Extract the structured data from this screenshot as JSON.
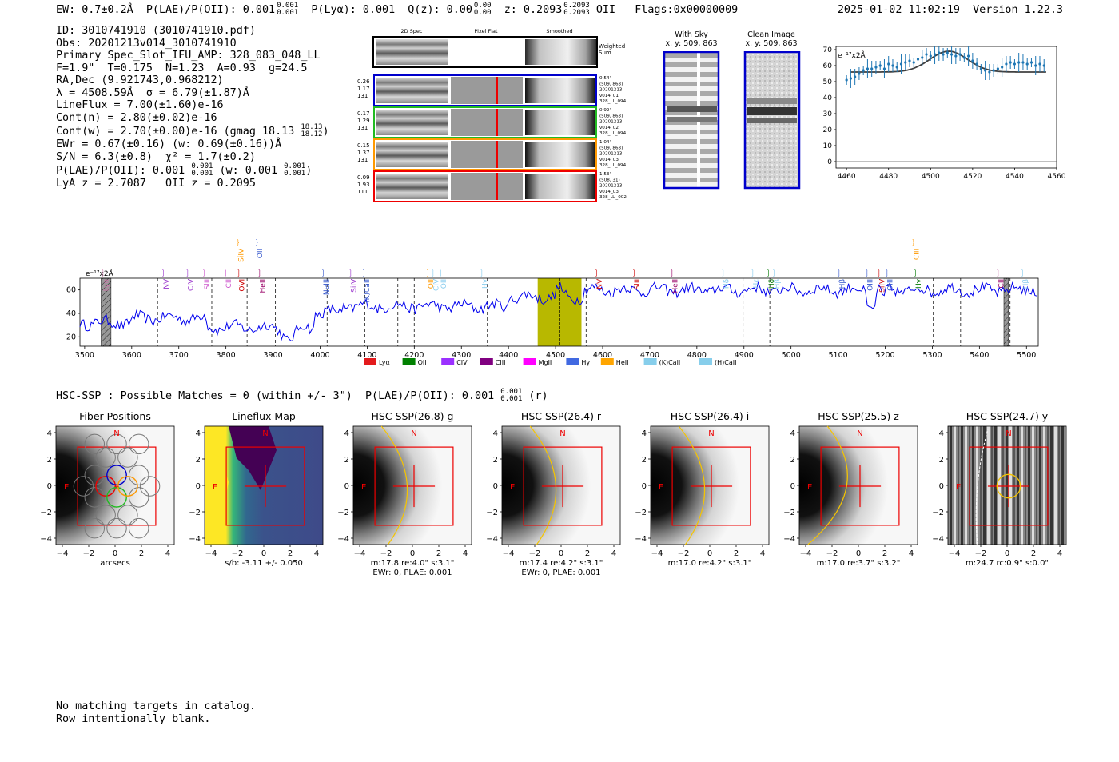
{
  "header": {
    "ew": "EW: 0.7±0.2Å",
    "plae": "P(LAE)/P(OII): 0.001",
    "plae_hi": "0.001",
    "plae_lo": "0.001",
    "plya": "P(Lyα): 0.001",
    "qz": "Q(z): 0.00",
    "qz_hi": "0.00",
    "qz_lo": "0.00",
    "z": "z: 0.2093",
    "z_hi": "0.2093",
    "z_lo": "0.2093",
    "z_line": "OII",
    "flags": "Flags:0x00000009",
    "timestamp": "2025-01-02 11:02:19",
    "version": "Version 1.22.3"
  },
  "info": {
    "id": "ID: 3010741910 (3010741910.pdf)",
    "obs": "Obs: 20201213v014_3010741910",
    "slot": "Primary Spec_Slot_IFU_AMP: 328_083_048_LL",
    "params": "F=1.9\"  T=0.175  N=1.23  A=0.93  g=24.5",
    "radec": "RA,Dec (9.921743,0.968212)",
    "lambda": "λ = 4508.59Å  σ = 6.79(±1.87)Å",
    "lineflux": "LineFlux = 7.00(±1.60)e-16",
    "contn": "Cont(n) = 2.80(±0.02)e-16",
    "contw": "Cont(w) = 2.70(±0.00)e-16 (gmag 18.13",
    "contw_hi": "18.13",
    "contw_lo": "18.12",
    "contw_end": ")",
    "ewr": "EWr = 0.67(±0.16) (w: 0.69(±0.16))Å",
    "sn": "S/N = 6.3(±0.8)  χ² = 1.7(±0.2)",
    "plae": "P(LAE)/P(OII): 0.001",
    "plae_hi": "0.001",
    "plae_lo": "0.001",
    "plae_w": " (w: 0.001",
    "plae_w_hi": "0.001",
    "plae_w_lo": "0.001",
    "plae_w_end": ")",
    "lya": "LyA z = 2.7087   OII z = 0.2095"
  },
  "cutouts": {
    "col_labels": [
      "2D Spec",
      "Pixel Flat",
      "Smoothed"
    ],
    "weighted_sum": [
      "Weighted",
      "Sum"
    ],
    "rows": [
      {
        "left": [
          "0.26",
          "1.17",
          "131"
        ],
        "right": [
          "0.54\"",
          "(509, 863)",
          "20201213",
          "v014_01",
          "328_LL_094"
        ]
      },
      {
        "left": [
          "0.17",
          "1.29",
          "131"
        ],
        "right": [
          "0.92\"",
          "(509, 863)",
          "20201213",
          "v014_02",
          "328_LL_094"
        ]
      },
      {
        "left": [
          "0.15",
          "1.37",
          "131"
        ],
        "right": [
          "1.04\"",
          "(509, 863)",
          "20201213",
          "v014_03",
          "328_LL_094"
        ]
      },
      {
        "left": [
          "0.09",
          "1.93",
          "111"
        ],
        "right": [
          "1.53\"",
          "(508, 31)",
          "20201213",
          "v014_03",
          "328_LU_002"
        ]
      }
    ]
  },
  "sky": {
    "with_sky_title": "With Sky",
    "with_sky_xy": "x, y: 509, 863",
    "clean_title": "Clean Image",
    "clean_xy": "x, y: 509, 863"
  },
  "zoom_chart": {
    "type": "scatter",
    "unit": "e⁻¹⁷x2Å",
    "x_ticks": [
      4460,
      4480,
      4500,
      4520,
      4540,
      4560
    ],
    "y_ticks": [
      0,
      10,
      20,
      30,
      40,
      50,
      60,
      70
    ],
    "xlim": [
      4455,
      4560
    ],
    "ylim": [
      -4,
      72
    ],
    "data_color": "#1f77b4",
    "fit_color": "#404040"
  },
  "chart_data": {
    "type": "line",
    "title": "",
    "ylabel": "e⁻¹⁷x2Å",
    "xlim": [
      3490,
      5525
    ],
    "ylim": [
      12,
      70
    ],
    "x_ticks": [
      3500,
      3600,
      3700,
      3800,
      3900,
      4000,
      4100,
      4200,
      4300,
      4400,
      4500,
      4600,
      4700,
      4800,
      4900,
      5000,
      5100,
      5200,
      5300,
      5400,
      5500
    ],
    "y_ticks": [
      20,
      40,
      60
    ],
    "line_color": "#0000ee",
    "highlight": {
      "from": 4462,
      "to": 4555,
      "color": "#b8b800"
    },
    "center": 4508.6,
    "hatched": [
      [
        3535,
        3556
      ],
      [
        5452,
        5462
      ]
    ],
    "dashed_lines": [
      3545,
      3655,
      3770,
      3845,
      3905,
      4015,
      4095,
      4165,
      4200,
      4355,
      4565,
      4898,
      4955,
      5302,
      5360,
      5465
    ],
    "lines": [
      {
        "name": "Lyα",
        "x": 3545,
        "color": "#cc77aa",
        "tier": 0
      },
      {
        "name": "NV",
        "x": 3673,
        "color": "#9933cc",
        "tier": 0
      },
      {
        "name": "CIV",
        "x": 3725,
        "color": "#9933cc",
        "tier": 0
      },
      {
        "name": "SiII",
        "x": 3760,
        "color": "#cc55cc",
        "tier": 0
      },
      {
        "name": "CII",
        "x": 3806,
        "color": "#cc55cc",
        "tier": 0
      },
      {
        "name": "SiIV",
        "x": 3832,
        "color": "#ff9900",
        "tier": 1
      },
      {
        "name": "OVI",
        "x": 3834,
        "color": "#cc0000",
        "tier": 0
      },
      {
        "name": "OII",
        "x": 3872,
        "color": "#3355cc",
        "tier": 1
      },
      {
        "name": "HeII",
        "x": 3878,
        "color": "#990066",
        "tier": 0
      },
      {
        "name": "NeIII",
        "x": 4013,
        "color": "#3355cc",
        "tier": 0
      },
      {
        "name": "SiIV",
        "x": 4071,
        "color": "#9933cc",
        "tier": 0
      },
      {
        "name": "(K)CaII",
        "x": 4099,
        "color": "#3355cc",
        "tier": 0
      },
      {
        "name": "OII",
        "x": 4235,
        "color": "#ff9900",
        "tier": 0
      },
      {
        "name": "CIV",
        "x": 4246,
        "color": "#88ccee",
        "tier": 0
      },
      {
        "name": "OII",
        "x": 4262,
        "color": "#88ccee",
        "tier": 0
      },
      {
        "name": "Hγ",
        "x": 4350,
        "color": "#88ccee",
        "tier": 0
      },
      {
        "name": "NV",
        "x": 4593,
        "color": "#cc0000",
        "tier": 0
      },
      {
        "name": "SiII",
        "x": 4673,
        "color": "#cc0000",
        "tier": 0
      },
      {
        "name": "HeII",
        "x": 4754,
        "color": "#990066",
        "tier": 0
      },
      {
        "name": "Hδ",
        "x": 4862,
        "color": "#88ccee",
        "tier": 0
      },
      {
        "name": "Hε",
        "x": 4925,
        "color": "#88ccee",
        "tier": 0
      },
      {
        "name": "Hδ",
        "x": 4958,
        "color": "#007700",
        "tier": 0
      },
      {
        "name": "Hβ",
        "x": 4970,
        "color": "#88ccee",
        "tier": 0
      },
      {
        "name": "Hβ",
        "x": 5108,
        "color": "#3355cc",
        "tier": 0
      },
      {
        "name": "OIII",
        "x": 5168,
        "color": "#3355cc",
        "tier": 0
      },
      {
        "name": "SiIV",
        "x": 5193,
        "color": "#cc0000",
        "tier": 0
      },
      {
        "name": "OIII",
        "x": 5210,
        "color": "#3355cc",
        "tier": 0
      },
      {
        "name": "CIII",
        "x": 5266,
        "color": "#ff9900",
        "tier": 1
      },
      {
        "name": "Hγ",
        "x": 5270,
        "color": "#007700",
        "tier": 0
      },
      {
        "name": "CII",
        "x": 5446,
        "color": "#990066",
        "tier": 0
      },
      {
        "name": "Hβ",
        "x": 5498,
        "color": "#88ccee",
        "tier": 0
      }
    ],
    "legend": [
      {
        "label": "Lyα",
        "color": "#e31a1c"
      },
      {
        "label": "OII",
        "color": "#008000"
      },
      {
        "label": "CIV",
        "color": "#9b30ff"
      },
      {
        "label": "CIII",
        "color": "#800080"
      },
      {
        "label": "MgII",
        "color": "#ff00ff"
      },
      {
        "label": "Hγ",
        "color": "#4169e1"
      },
      {
        "label": "HeII",
        "color": "#ffa500"
      },
      {
        "label": "(K)CaII",
        "color": "#87ceeb"
      },
      {
        "label": "(H)CaII",
        "color": "#87ceeb"
      }
    ]
  },
  "hsc": {
    "title": "HSC-SSP : Possible Matches = 0 (within +/- 3\")  P(LAE)/P(OII): 0.001",
    "title_hi": "0.001",
    "title_lo": "0.001",
    "title_end": " (r)",
    "tick_labels": [
      "4",
      "2",
      "0",
      "−2",
      "−4"
    ],
    "xtick_labels": [
      "−4",
      "−2",
      "0",
      "2",
      "4"
    ],
    "panels": [
      {
        "title": "Fiber Positions",
        "cap1": "arcsecs",
        "cap2": ""
      },
      {
        "title": "Lineflux Map",
        "cap1": "s/b: -3.11 +/- 0.050",
        "cap2": ""
      },
      {
        "title": "HSC SSP(26.8) g",
        "cap1": "m:17.8  re:4.0\"  s:3.1\"",
        "cap2": "EWr: 0, PLAE: 0.001"
      },
      {
        "title": "HSC SSP(26.4) r",
        "cap1": "m:17.4  re:4.2\"  s:3.1\"",
        "cap2": "EWr: 0, PLAE: 0.001"
      },
      {
        "title": "HSC SSP(26.4) i",
        "cap1": "m:17.0  re:4.2\"  s:3.1\"",
        "cap2": ""
      },
      {
        "title": "HSC SSP(25.5) z",
        "cap1": "m:17.0  re:3.7\"  s:3.2\"",
        "cap2": ""
      },
      {
        "title": "HSC SSP(24.7) y",
        "cap1": "m:24.7  rc:0.9\"  s:0.0\"",
        "cap2": ""
      }
    ],
    "n_label": "N",
    "e_label": "E"
  },
  "footer": {
    "line1": "No matching targets in catalog.",
    "line2": "Row intentionally blank."
  }
}
